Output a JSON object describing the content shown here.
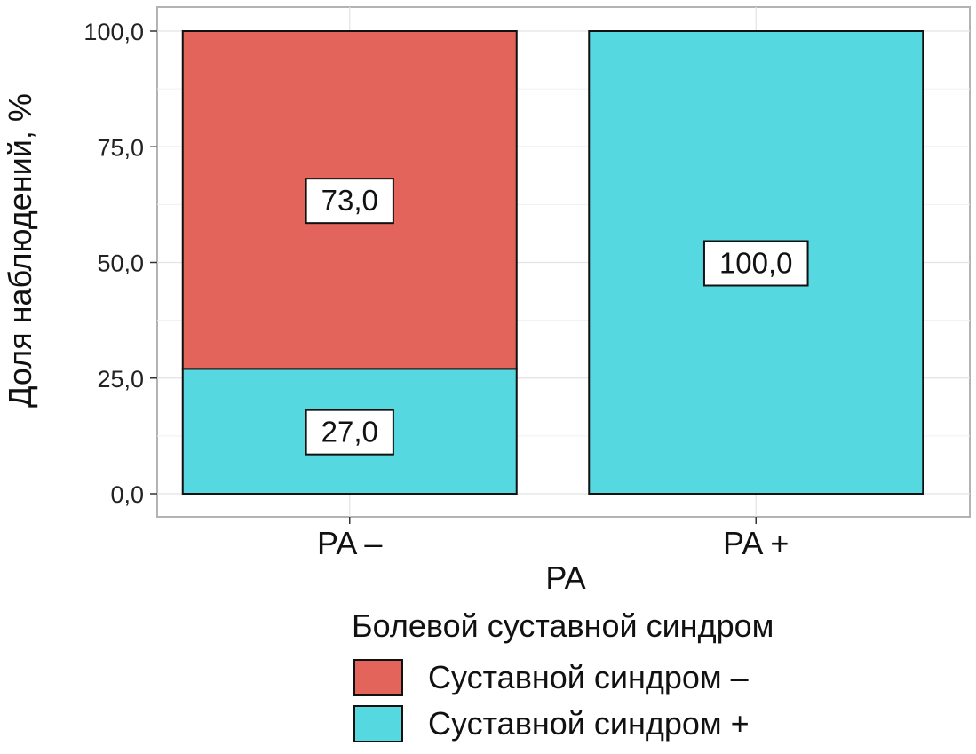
{
  "chart_data": {
    "type": "bar",
    "stacked": true,
    "categories": [
      "PA –",
      "PA +"
    ],
    "xlabel": "PA",
    "ylabel": "Доля наблюдений, %",
    "ylim": [
      0,
      100
    ],
    "yticks": [
      "0,0",
      "25,0",
      "50,0",
      "75,0",
      "100,0"
    ],
    "ytick_values": [
      0,
      25,
      50,
      75,
      100
    ],
    "grid": true,
    "series": [
      {
        "name": "Суставной синдром +",
        "color": "#55d8e0",
        "values": [
          27.0,
          100.0
        ],
        "labels": [
          "27,0",
          "100,0"
        ]
      },
      {
        "name": "Суставной синдром –",
        "color": "#e2645a",
        "values": [
          73.0,
          0
        ],
        "labels": [
          "73,0",
          ""
        ]
      }
    ],
    "legend": {
      "title": "Болевой суставной синдром",
      "placement": "bottom",
      "entries": [
        {
          "label": "Суставной синдром –",
          "color": "#e2645a"
        },
        {
          "label": "Суставной синдром +",
          "color": "#55d8e0"
        }
      ]
    }
  }
}
